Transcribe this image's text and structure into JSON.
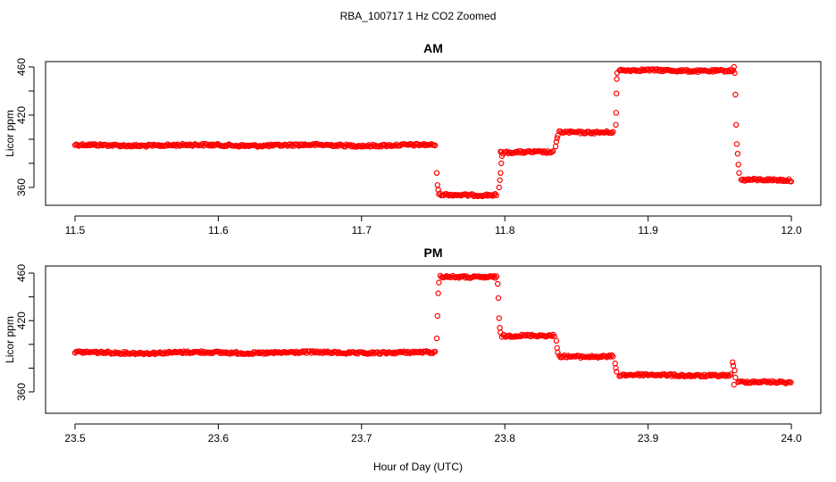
{
  "figure": {
    "title": "RBA_100717  1 Hz CO2 Zoomed",
    "xlabel": "Hour of Day (UTC)"
  },
  "style": {
    "point_color": "#ff0000",
    "axis_color": "#000000",
    "background": "#ffffff"
  },
  "chart_data": [
    {
      "type": "scatter",
      "title": "AM",
      "xlabel": "",
      "ylabel": "Licor ppm",
      "xlim": [
        11.5,
        12.0
      ],
      "ylim": [
        350,
        463
      ],
      "xticks": [
        "11.5",
        "11.6",
        "11.7",
        "11.8",
        "11.9",
        "12.0"
      ],
      "yticks": [
        "360",
        "420",
        "460"
      ],
      "grid": false,
      "series": [
        {
          "marker": "open-circle",
          "levels": [
            {
              "x_start": 11.5,
              "x_end": 11.752,
              "y": 395
            },
            {
              "x_start": 11.754,
              "x_end": 11.795,
              "y": 354
            },
            {
              "x_start": 11.797,
              "x_end": 11.834,
              "y": 389
            },
            {
              "x_start": 11.838,
              "x_end": 11.876,
              "y": 406
            },
            {
              "x_start": 11.88,
              "x_end": 11.96,
              "y": 457
            },
            {
              "x_start": 11.965,
              "x_end": 12.0,
              "y": 366
            }
          ],
          "transitions": [
            [
              11.7525,
              372
            ],
            [
              11.753,
              362
            ],
            [
              11.7535,
              358
            ],
            [
              11.796,
              360
            ],
            [
              11.7965,
              366
            ],
            [
              11.797,
              372
            ],
            [
              11.7975,
              380
            ],
            [
              11.798,
              386
            ],
            [
              11.8355,
              394
            ],
            [
              11.836,
              398
            ],
            [
              11.8365,
              401
            ],
            [
              11.837,
              403
            ],
            [
              11.8775,
              412
            ],
            [
              11.8777,
              422
            ],
            [
              11.8779,
              438
            ],
            [
              11.8781,
              450
            ],
            [
              11.8784,
              455
            ],
            [
              11.96,
              460
            ],
            [
              11.9605,
              455
            ],
            [
              11.961,
              437
            ],
            [
              11.9615,
              412
            ],
            [
              11.962,
              396
            ],
            [
              11.9625,
              388
            ],
            [
              11.963,
              379
            ],
            [
              11.9635,
              372
            ]
          ]
        }
      ]
    },
    {
      "type": "scatter",
      "title": "PM",
      "xlabel": "",
      "ylabel": "Licor ppm",
      "xlim": [
        23.5,
        24.0
      ],
      "ylim": [
        350,
        463
      ],
      "xticks": [
        "23.5",
        "23.6",
        "23.7",
        "23.8",
        "23.9",
        "24.0"
      ],
      "yticks": [
        "360",
        "420",
        "460"
      ],
      "grid": false,
      "series": [
        {
          "marker": "open-circle",
          "levels": [
            {
              "x_start": 23.5,
              "x_end": 23.752,
              "y": 393
            },
            {
              "x_start": 23.755,
              "x_end": 23.795,
              "y": 457
            },
            {
              "x_start": 23.798,
              "x_end": 23.835,
              "y": 407
            },
            {
              "x_start": 23.838,
              "x_end": 23.876,
              "y": 390
            },
            {
              "x_start": 23.88,
              "x_end": 23.958,
              "y": 374
            },
            {
              "x_start": 23.963,
              "x_end": 24.0,
              "y": 368
            }
          ],
          "transitions": [
            [
              23.7525,
              405
            ],
            [
              23.753,
              424
            ],
            [
              23.7535,
              443
            ],
            [
              23.754,
              452
            ],
            [
              23.795,
              451
            ],
            [
              23.7955,
              439
            ],
            [
              23.796,
              422
            ],
            [
              23.7965,
              414
            ],
            [
              23.797,
              410
            ],
            [
              23.836,
              403
            ],
            [
              23.8365,
              397
            ],
            [
              23.837,
              393
            ],
            [
              23.877,
              384
            ],
            [
              23.8775,
              380
            ],
            [
              23.878,
              377
            ],
            [
              23.959,
              385
            ],
            [
              23.9595,
              382
            ],
            [
              23.96,
              366
            ],
            [
              23.9605,
              378
            ],
            [
              23.961,
              372
            ]
          ]
        }
      ]
    }
  ]
}
